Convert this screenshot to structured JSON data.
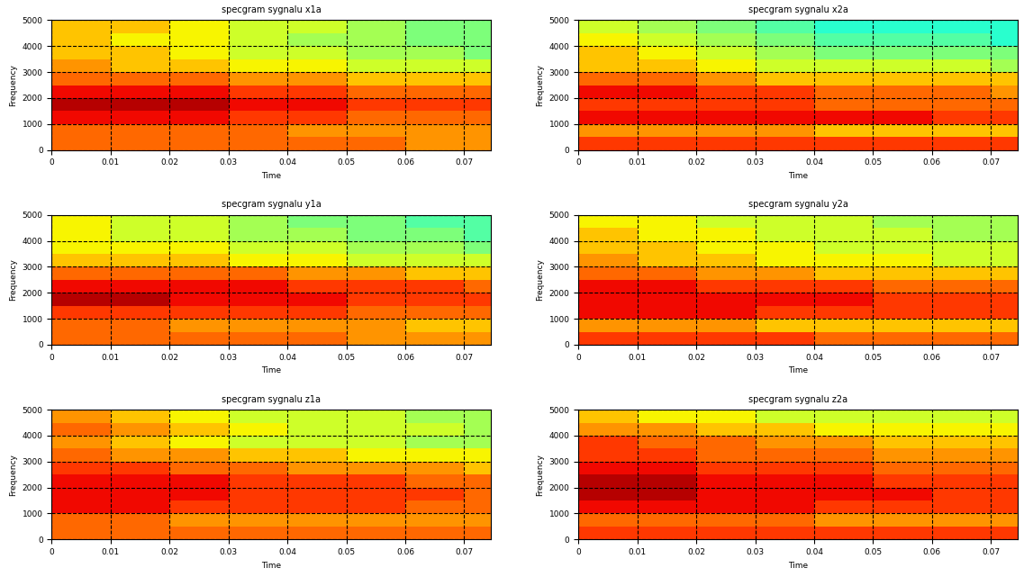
{
  "chart_data": [
    {
      "type": "heatmap",
      "title": "specgram sygnalu x1a",
      "x_label": "Time",
      "y_label": "Frequency",
      "xlim": [
        0,
        0.0745
      ],
      "ylim": [
        0,
        5000
      ],
      "xticks": [
        0,
        0.01,
        0.02,
        0.03,
        0.04,
        0.05,
        0.06,
        0.07
      ],
      "yticks": [
        0,
        1000,
        2000,
        3000,
        4000,
        5000
      ],
      "grid": true,
      "zlim": [
        0,
        10
      ],
      "x_edges": [
        0,
        0.01,
        0.02,
        0.03,
        0.04,
        0.05,
        0.06,
        0.07,
        0.0745
      ],
      "y_edges": [
        0,
        500,
        1000,
        1500,
        2000,
        2500,
        3000,
        3500,
        4000,
        4500,
        5000
      ],
      "cells": [
        [
          8,
          8,
          8,
          8,
          8,
          8,
          7.5,
          7.5
        ],
        [
          8,
          8,
          8,
          8,
          7.5,
          7.5,
          7.5,
          7.5
        ],
        [
          9,
          9,
          9,
          8.5,
          8.5,
          8,
          8,
          8
        ],
        [
          9.5,
          9.5,
          9.5,
          9,
          9,
          8.5,
          8.5,
          8.5
        ],
        [
          9,
          9,
          9,
          8.5,
          8.5,
          8,
          8,
          8
        ],
        [
          8,
          8,
          8,
          7.5,
          7.5,
          7,
          7,
          7
        ],
        [
          7.5,
          7,
          7,
          6.5,
          6.5,
          6,
          6,
          6
        ],
        [
          7,
          7,
          6.5,
          6,
          6,
          5.5,
          5.5,
          5
        ],
        [
          7,
          6.5,
          6.5,
          6,
          5.5,
          5.5,
          5,
          5
        ],
        [
          7,
          7,
          6.5,
          6,
          6,
          5.5,
          5,
          5
        ]
      ]
    },
    {
      "type": "heatmap",
      "title": "specgram sygnalu x2a",
      "x_label": "Time",
      "y_label": "Frequency",
      "xlim": [
        0,
        0.0745
      ],
      "ylim": [
        0,
        5000
      ],
      "xticks": [
        0,
        0.01,
        0.02,
        0.03,
        0.04,
        0.05,
        0.06,
        0.07
      ],
      "yticks": [
        0,
        1000,
        2000,
        3000,
        4000,
        5000
      ],
      "grid": true,
      "zlim": [
        0,
        10
      ],
      "x_edges": [
        0,
        0.01,
        0.02,
        0.03,
        0.04,
        0.05,
        0.06,
        0.07,
        0.0745
      ],
      "y_edges": [
        0,
        500,
        1000,
        1500,
        2000,
        2500,
        3000,
        3500,
        4000,
        4500,
        5000
      ],
      "cells": [
        [
          8.5,
          8.5,
          8.5,
          8.5,
          8.5,
          8.5,
          8.5,
          8.5
        ],
        [
          7.5,
          7.5,
          7.5,
          7.5,
          7,
          7,
          7,
          7
        ],
        [
          9,
          9,
          9,
          9,
          9,
          9,
          8.5,
          8.5
        ],
        [
          8.5,
          8.5,
          8.5,
          8.5,
          8,
          8,
          8,
          8
        ],
        [
          9,
          9,
          8.5,
          8.5,
          8,
          8,
          8,
          7.5
        ],
        [
          8,
          8,
          7.5,
          7,
          7,
          7,
          7,
          7
        ],
        [
          7,
          7,
          6.5,
          6,
          6,
          6,
          6,
          5.5
        ],
        [
          7,
          6.5,
          6,
          5.5,
          5,
          5,
          5,
          5
        ],
        [
          6.5,
          6,
          5.5,
          5,
          4.5,
          4.5,
          4.5,
          4
        ],
        [
          6,
          5.5,
          5,
          4.5,
          4,
          4,
          4,
          4
        ]
      ]
    },
    {
      "type": "heatmap",
      "title": "specgram sygnalu y1a",
      "x_label": "Time",
      "y_label": "Frequency",
      "xlim": [
        0,
        0.0745
      ],
      "ylim": [
        0,
        5000
      ],
      "xticks": [
        0,
        0.01,
        0.02,
        0.03,
        0.04,
        0.05,
        0.06,
        0.07
      ],
      "yticks": [
        0,
        1000,
        2000,
        3000,
        4000,
        5000
      ],
      "grid": true,
      "zlim": [
        0,
        10
      ],
      "x_edges": [
        0,
        0.01,
        0.02,
        0.03,
        0.04,
        0.05,
        0.06,
        0.07,
        0.0745
      ],
      "y_edges": [
        0,
        500,
        1000,
        1500,
        2000,
        2500,
        3000,
        3500,
        4000,
        4500,
        5000
      ],
      "cells": [
        [
          8,
          8,
          8,
          8,
          8,
          7.5,
          7.5,
          7.5
        ],
        [
          8,
          8,
          7.5,
          7.5,
          7.5,
          7.5,
          7,
          7
        ],
        [
          8.5,
          8.5,
          8.5,
          8.5,
          8.5,
          8,
          8,
          8
        ],
        [
          9.5,
          9.5,
          9,
          9,
          9,
          8.5,
          8.5,
          8.5
        ],
        [
          9,
          9,
          9,
          9,
          8.5,
          8.5,
          8.5,
          8
        ],
        [
          8,
          8,
          8,
          8,
          7.5,
          7.5,
          7,
          7
        ],
        [
          7,
          7,
          7,
          6.5,
          6.5,
          6,
          6,
          6
        ],
        [
          6.5,
          6.5,
          6.5,
          6,
          6,
          5.5,
          5.5,
          5
        ],
        [
          6.5,
          6,
          6,
          5.5,
          5.5,
          5,
          5,
          4.5
        ],
        [
          6.5,
          6,
          6,
          5.5,
          5,
          5,
          4.5,
          4.5
        ]
      ]
    },
    {
      "type": "heatmap",
      "title": "specgram sygnalu y2a",
      "x_label": "Time",
      "y_label": "Frequency",
      "xlim": [
        0,
        0.0745
      ],
      "ylim": [
        0,
        5000
      ],
      "xticks": [
        0,
        0.01,
        0.02,
        0.03,
        0.04,
        0.05,
        0.06,
        0.07
      ],
      "yticks": [
        0,
        1000,
        2000,
        3000,
        4000,
        5000
      ],
      "grid": true,
      "zlim": [
        0,
        10
      ],
      "x_edges": [
        0,
        0.01,
        0.02,
        0.03,
        0.04,
        0.05,
        0.06,
        0.07,
        0.0745
      ],
      "y_edges": [
        0,
        500,
        1000,
        1500,
        2000,
        2500,
        3000,
        3500,
        4000,
        4500,
        5000
      ],
      "cells": [
        [
          8.5,
          8.5,
          8.5,
          8.5,
          8,
          8,
          8,
          8
        ],
        [
          7.5,
          7.5,
          7.5,
          7,
          7,
          7,
          7,
          7
        ],
        [
          9,
          9,
          9,
          8.5,
          8.5,
          8.5,
          8.5,
          8.5
        ],
        [
          9,
          9,
          9,
          9,
          9,
          8.5,
          8.5,
          8.5
        ],
        [
          9,
          9,
          8.5,
          8.5,
          8.5,
          8,
          8,
          8
        ],
        [
          8,
          8,
          7.5,
          7.5,
          7,
          7,
          7,
          7
        ],
        [
          7.5,
          7,
          7,
          6.5,
          6.5,
          6.5,
          6,
          6
        ],
        [
          7,
          7,
          6.5,
          6.5,
          6,
          6,
          6,
          6
        ],
        [
          7,
          6.5,
          6.5,
          6,
          6,
          6,
          5.5,
          5.5
        ],
        [
          6.5,
          6.5,
          6,
          6,
          6,
          5.5,
          5.5,
          5.5
        ]
      ]
    },
    {
      "type": "heatmap",
      "title": "specgram sygnalu z1a",
      "x_label": "Time",
      "y_label": "Frequency",
      "xlim": [
        0,
        0.0745
      ],
      "ylim": [
        0,
        5000
      ],
      "xticks": [
        0,
        0.01,
        0.02,
        0.03,
        0.04,
        0.05,
        0.06,
        0.07
      ],
      "yticks": [
        0,
        1000,
        2000,
        3000,
        4000,
        5000
      ],
      "grid": true,
      "zlim": [
        0,
        10
      ],
      "x_edges": [
        0,
        0.01,
        0.02,
        0.03,
        0.04,
        0.05,
        0.06,
        0.07,
        0.0745
      ],
      "y_edges": [
        0,
        500,
        1000,
        1500,
        2000,
        2500,
        3000,
        3500,
        4000,
        4500,
        5000
      ],
      "cells": [
        [
          8,
          8,
          8,
          8,
          8,
          8,
          8,
          8
        ],
        [
          8,
          8,
          7.5,
          7.5,
          7.5,
          7.5,
          7.5,
          7.5
        ],
        [
          9,
          9,
          8.5,
          8.5,
          8.5,
          8.5,
          8,
          8
        ],
        [
          9,
          9,
          9,
          8.5,
          8.5,
          8.5,
          8.5,
          8
        ],
        [
          9,
          9,
          9,
          8.5,
          8.5,
          8.5,
          8,
          8
        ],
        [
          8.5,
          8.5,
          8,
          8,
          7.5,
          7.5,
          7.5,
          7
        ],
        [
          8,
          7.5,
          7.5,
          7,
          7,
          6.5,
          6.5,
          6.5
        ],
        [
          7.5,
          7,
          6.5,
          6,
          6,
          6,
          5.5,
          5.5
        ],
        [
          8,
          7.5,
          7,
          6.5,
          6,
          6,
          6,
          5.5
        ],
        [
          7.5,
          7,
          6.5,
          6,
          6,
          6,
          5.5,
          5.5
        ]
      ]
    },
    {
      "type": "heatmap",
      "title": "specgram sygnalu z2a",
      "x_label": "Time",
      "y_label": "Frequency",
      "xlim": [
        0,
        0.0745
      ],
      "ylim": [
        0,
        5000
      ],
      "xticks": [
        0,
        0.01,
        0.02,
        0.03,
        0.04,
        0.05,
        0.06,
        0.07
      ],
      "yticks": [
        0,
        1000,
        2000,
        3000,
        4000,
        5000
      ],
      "grid": true,
      "zlim": [
        0,
        10
      ],
      "x_edges": [
        0,
        0.01,
        0.02,
        0.03,
        0.04,
        0.05,
        0.06,
        0.07,
        0.0745
      ],
      "y_edges": [
        0,
        500,
        1000,
        1500,
        2000,
        2500,
        3000,
        3500,
        4000,
        4500,
        5000
      ],
      "cells": [
        [
          8.5,
          8.5,
          8.5,
          8.5,
          8.5,
          8.5,
          8.5,
          8.5
        ],
        [
          8,
          8,
          8,
          8,
          7.5,
          7.5,
          7.5,
          7.5
        ],
        [
          9,
          9,
          9,
          9,
          8.5,
          8.5,
          8.5,
          8.5
        ],
        [
          9.5,
          9.5,
          9,
          9,
          9,
          9,
          8.5,
          8.5
        ],
        [
          9.5,
          9.5,
          9,
          9,
          9,
          8.5,
          8.5,
          8.5
        ],
        [
          9,
          9,
          8.5,
          8.5,
          8.5,
          8,
          8,
          8
        ],
        [
          8.5,
          8.5,
          8,
          8,
          8,
          7.5,
          7.5,
          7.5
        ],
        [
          8.5,
          8,
          8,
          7.5,
          7.5,
          7,
          7,
          7
        ],
        [
          7.5,
          7.5,
          7,
          7,
          6.5,
          6.5,
          6.5,
          6.5
        ],
        [
          7,
          6.5,
          6.5,
          6,
          6,
          6,
          6,
          6
        ]
      ]
    }
  ]
}
